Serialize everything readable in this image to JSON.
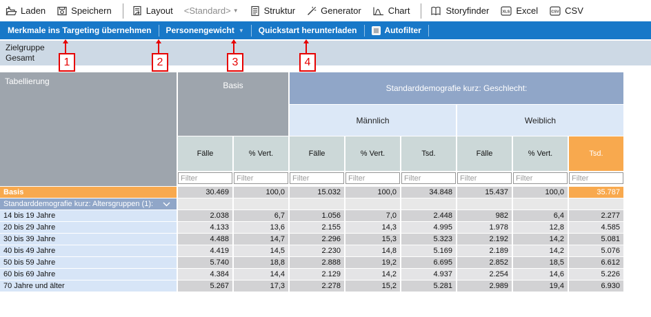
{
  "toolbar": {
    "items": [
      {
        "name": "laden-button",
        "icon": "folder-open-icon",
        "label": "Laden"
      },
      {
        "name": "speichern-button",
        "icon": "save-icon",
        "label": "Speichern"
      },
      {
        "type": "separator"
      },
      {
        "name": "layout-button",
        "icon": "layout-icon",
        "label": "Layout"
      },
      {
        "name": "layout-preset-dropdown",
        "label": "<Standard>",
        "muted": true,
        "caret": true
      },
      {
        "name": "struktur-button",
        "icon": "structure-icon",
        "label": "Struktur"
      },
      {
        "name": "generator-button",
        "icon": "generator-icon",
        "label": "Generator"
      },
      {
        "name": "chart-button",
        "icon": "chart-icon",
        "label": "Chart"
      },
      {
        "type": "separator"
      },
      {
        "name": "storyfinder-button",
        "icon": "book-icon",
        "label": "Storyfinder"
      },
      {
        "name": "excel-button",
        "icon": "xls-icon",
        "label": "Excel"
      },
      {
        "name": "csv-button",
        "icon": "csv-icon",
        "label": "CSV"
      }
    ]
  },
  "actionbar": {
    "buttons": [
      {
        "name": "targeting-button",
        "label": "Merkmale ins Targeting übernehmen"
      },
      {
        "name": "personengewicht-dropdown",
        "label": "Personengewicht",
        "caret": true
      },
      {
        "name": "quickstart-button",
        "label": "Quickstart herunterladen"
      },
      {
        "name": "autofilter-toggle",
        "label": "Autofilter",
        "checkbox": true
      }
    ]
  },
  "info": {
    "line1": "Zielgruppe",
    "line2": "Gesamt"
  },
  "callouts": [
    "1",
    "2",
    "3",
    "4"
  ],
  "table": {
    "corner_label": "Tabellierung",
    "basis_label": "Basis",
    "band_label": "Standarddemografie kurz: Geschlecht:",
    "subheaders": [
      "Männlich",
      "Weiblich"
    ],
    "columns": [
      "Fälle",
      "% Vert.",
      "Fälle",
      "% Vert.",
      "Tsd.",
      "Fälle",
      "% Vert.",
      "Tsd."
    ],
    "filter_placeholder": "Filter",
    "rows": [
      {
        "type": "basis",
        "label": "Basis",
        "values": [
          "30.469",
          "100,0",
          "15.032",
          "100,0",
          "34.848",
          "15.437",
          "100,0",
          "35.787"
        ]
      },
      {
        "type": "group",
        "label": "Standarddemografie kurz: Altersgruppen (1):",
        "values": [
          "",
          "",
          "",
          "",
          "",
          "",
          "",
          ""
        ]
      },
      {
        "type": "data",
        "label": "14 bis 19 Jahre",
        "values": [
          "2.038",
          "6,7",
          "1.056",
          "7,0",
          "2.448",
          "982",
          "6,4",
          "2.277"
        ]
      },
      {
        "type": "data",
        "label": "20 bis 29 Jahre",
        "values": [
          "4.133",
          "13,6",
          "2.155",
          "14,3",
          "4.995",
          "1.978",
          "12,8",
          "4.585"
        ]
      },
      {
        "type": "data",
        "label": "30 bis 39 Jahre",
        "values": [
          "4.488",
          "14,7",
          "2.296",
          "15,3",
          "5.323",
          "2.192",
          "14,2",
          "5.081"
        ]
      },
      {
        "type": "data",
        "label": "40 bis 49 Jahre",
        "values": [
          "4.419",
          "14,5",
          "2.230",
          "14,8",
          "5.169",
          "2.189",
          "14,2",
          "5.076"
        ]
      },
      {
        "type": "data",
        "label": "50 bis 59 Jahre",
        "values": [
          "5.740",
          "18,8",
          "2.888",
          "19,2",
          "6.695",
          "2.852",
          "18,5",
          "6.612"
        ]
      },
      {
        "type": "data",
        "label": "60 bis 69 Jahre",
        "values": [
          "4.384",
          "14,4",
          "2.129",
          "14,2",
          "4.937",
          "2.254",
          "14,6",
          "5.226"
        ]
      },
      {
        "type": "data",
        "label": "70 Jahre und älter",
        "values": [
          "5.267",
          "17,3",
          "2.278",
          "15,2",
          "5.281",
          "2.989",
          "19,4",
          "6.930"
        ]
      }
    ]
  },
  "colors": {
    "accent_blue": "#1878c8",
    "band_blue": "#90a6c8",
    "header_gray": "#9ea5ad",
    "highlight_orange": "#f8a94e",
    "info_band": "#cdd9e5",
    "row_label_blue": "#d7e5f7",
    "callout_red": "#e60000"
  }
}
